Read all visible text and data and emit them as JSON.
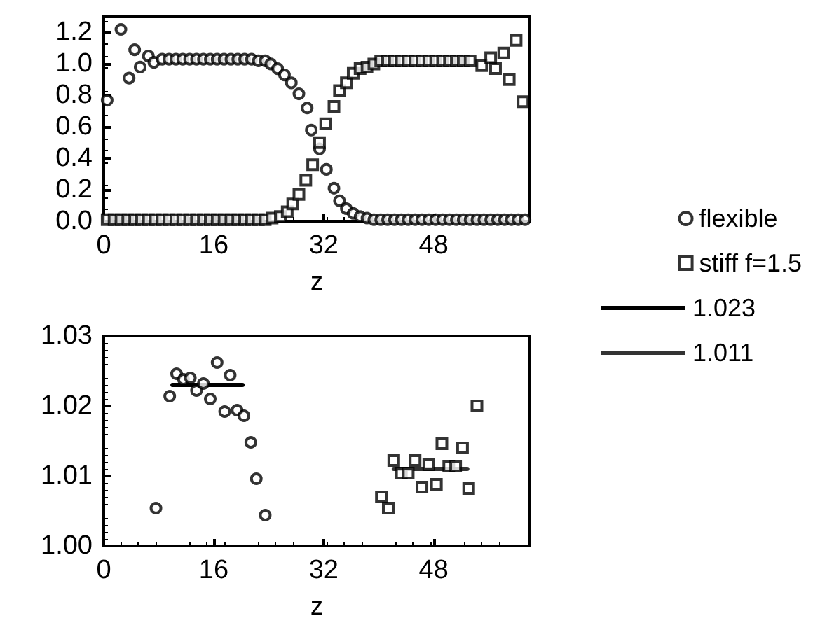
{
  "chart_data": [
    {
      "type": "scatter",
      "xlabel": "z",
      "xlim": [
        0,
        62
      ],
      "xticks": [
        0,
        16,
        32,
        48
      ],
      "ylim": [
        0,
        1.3
      ],
      "yticks": [
        {
          "value": 0,
          "label": "0.0"
        },
        {
          "value": 0.2,
          "label": "0.2"
        },
        {
          "value": 0.4,
          "label": "0.4"
        },
        {
          "value": 0.6,
          "label": "0.6"
        },
        {
          "value": 0.8,
          "label": "0.8"
        },
        {
          "value": 1,
          "label": "1.0"
        },
        {
          "value": 1.2,
          "label": "1.2"
        }
      ],
      "series": [
        {
          "color": "#000000",
          "marker": "circle",
          "x": [
            0.5,
            2.5,
            3.7,
            4.5,
            5.3,
            6.5,
            7.3,
            8.5,
            9.5,
            10.5,
            11.5,
            12.5,
            13.5,
            14.5,
            15.5,
            16.5,
            17.5,
            18.5,
            19.5,
            20.5,
            21.5,
            22.5,
            23.5,
            24.3,
            25.3,
            26.3,
            27.3,
            28.4,
            29.6,
            30.2,
            31.4,
            32.4,
            33.5,
            34.3,
            35.3,
            36.3,
            37.3,
            38.3,
            39.3,
            40.3,
            41.3,
            42.3,
            43.3,
            44.3,
            45.3,
            46.3,
            47.3,
            48.3,
            49.3,
            50.3,
            51.3,
            52.3,
            53.3,
            54.3,
            55.3,
            56.3,
            57.3,
            58.3,
            59.3,
            60.3,
            61.3
          ],
          "values": [
            0.77,
            1.22,
            0.91,
            1.09,
            0.98,
            1.05,
            1.01,
            1.03,
            1.03,
            1.03,
            1.03,
            1.03,
            1.03,
            1.03,
            1.03,
            1.03,
            1.03,
            1.03,
            1.03,
            1.03,
            1.03,
            1.02,
            1.02,
            1.0,
            0.97,
            0.93,
            0.88,
            0.81,
            0.72,
            0.58,
            0.46,
            0.33,
            0.21,
            0.13,
            0.08,
            0.05,
            0.03,
            0.02,
            0.01,
            0.01,
            0.01,
            0.01,
            0.01,
            0.01,
            0.01,
            0.01,
            0.01,
            0.01,
            0.01,
            0.01,
            0.01,
            0.01,
            0.01,
            0.01,
            0.01,
            0.01,
            0.01,
            0.01,
            0.01,
            0.01,
            0.01
          ]
        },
        {
          "color": "#000000",
          "marker": "square",
          "x": [
            0.5,
            1.5,
            2.5,
            3.5,
            4.5,
            5.5,
            6.5,
            7.5,
            8.5,
            9.5,
            10.5,
            11.5,
            12.5,
            13.5,
            14.5,
            15.5,
            16.5,
            17.5,
            18.5,
            19.5,
            20.5,
            21.5,
            22.5,
            23.5,
            24.5,
            25.7,
            26.7,
            27.5,
            28.4,
            29.4,
            30.4,
            31.4,
            32.3,
            33.5,
            34.3,
            35.3,
            36.3,
            37.3,
            38.3,
            39.3,
            40.3,
            41.3,
            42.3,
            43.3,
            44.3,
            45.3,
            46.3,
            47.3,
            48.3,
            49.3,
            50.3,
            51.3,
            52.3,
            53.3,
            55,
            56.3,
            57,
            58.2,
            59,
            60,
            61
          ],
          "values": [
            0.01,
            0.01,
            0.01,
            0.01,
            0.01,
            0.01,
            0.01,
            0.01,
            0.01,
            0.01,
            0.01,
            0.01,
            0.01,
            0.01,
            0.01,
            0.01,
            0.01,
            0.01,
            0.01,
            0.01,
            0.01,
            0.01,
            0.01,
            0.01,
            0.02,
            0.03,
            0.06,
            0.11,
            0.17,
            0.26,
            0.36,
            0.5,
            0.62,
            0.73,
            0.83,
            0.88,
            0.94,
            0.97,
            0.98,
            1.0,
            1.02,
            1.02,
            1.02,
            1.02,
            1.02,
            1.02,
            1.02,
            1.02,
            1.02,
            1.02,
            1.02,
            1.02,
            1.02,
            1.02,
            0.99,
            1.04,
            0.97,
            1.07,
            0.9,
            1.15,
            0.76
          ]
        }
      ]
    },
    {
      "type": "scatter",
      "xlabel": "z",
      "xlim": [
        0,
        62
      ],
      "xticks": [
        0,
        16,
        32,
        48
      ],
      "ylim": [
        1.0,
        1.03
      ],
      "yticks": [
        {
          "value": 1.0,
          "label": "1.00"
        },
        {
          "value": 1.01,
          "label": "1.01"
        },
        {
          "value": 1.02,
          "label": "1.02"
        },
        {
          "value": 1.03,
          "label": "1.03"
        }
      ],
      "legend": "right",
      "series": [
        {
          "name": "flexible",
          "color": "#000000",
          "marker": "circle",
          "x": [
            7.6,
            9.6,
            10.6,
            11.6,
            12.6,
            13.5,
            14.5,
            15.5,
            16.5,
            17.6,
            18.4,
            19.4,
            20.4,
            21.4,
            22.2,
            23.5
          ],
          "values": [
            1.0054,
            1.0214,
            1.0246,
            1.0238,
            1.024,
            1.0222,
            1.0232,
            1.021,
            1.0262,
            1.0192,
            1.0244,
            1.0194,
            1.0186,
            1.0148,
            1.0096,
            1.0044
          ]
        },
        {
          "name": "stiff f=1.5",
          "color": "#000000",
          "marker": "square",
          "x": [
            40.4,
            41.4,
            42.2,
            43.3,
            44.3,
            45.3,
            46.3,
            47.3,
            48.4,
            49.2,
            50.2,
            51.2,
            52.2,
            53.1,
            54.3
          ],
          "values": [
            1.007,
            1.0054,
            1.0122,
            1.0104,
            1.0104,
            1.0122,
            1.0084,
            1.0116,
            1.0088,
            1.0146,
            1.0114,
            1.0114,
            1.014,
            1.0082,
            1.02
          ]
        },
        {
          "name": "1.023",
          "type": "line",
          "color": "#000000",
          "line_style": "solid",
          "x": [
            10,
            20.2
          ],
          "values": [
            1.023,
            1.023
          ]
        },
        {
          "name": "1.011",
          "type": "line",
          "color": "#333333",
          "line_style": "solid",
          "x": [
            42.2,
            52.9
          ],
          "values": [
            1.011,
            1.011
          ]
        }
      ]
    }
  ]
}
